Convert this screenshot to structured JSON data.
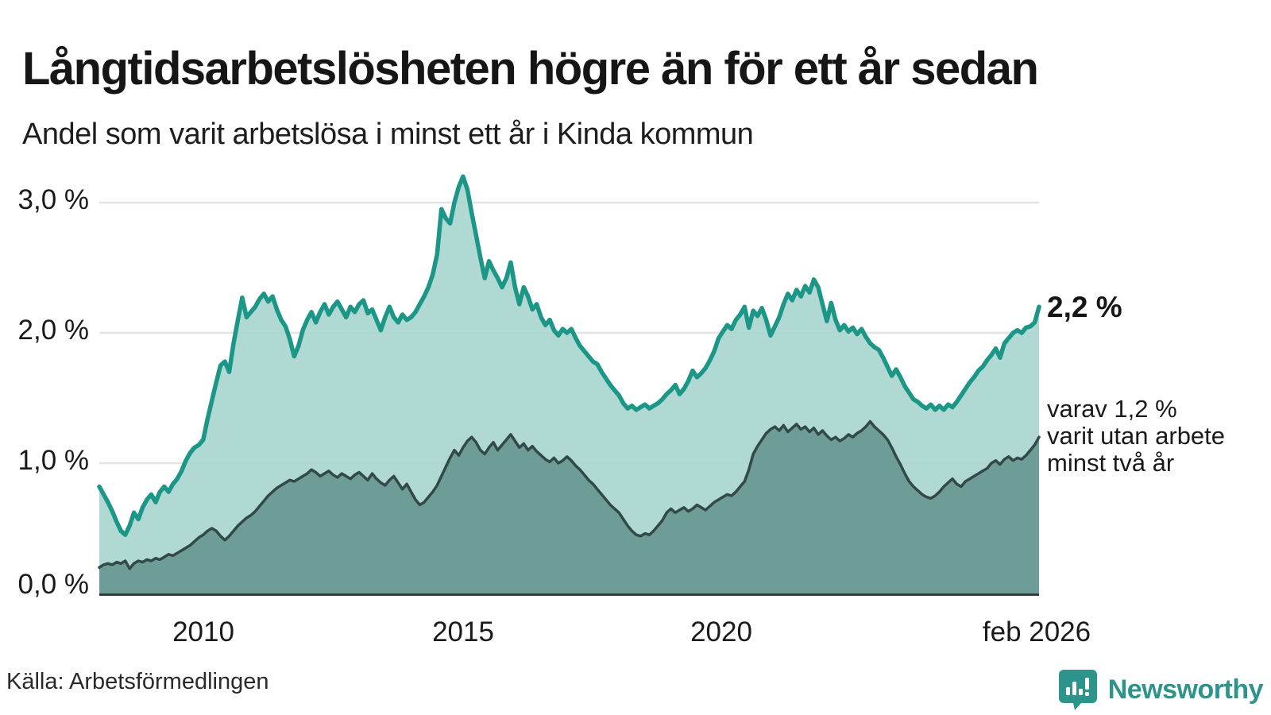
{
  "header": {
    "title": "Långtidsarbetslösheten högre än för ett år sedan",
    "subtitle": "Andel som varit arbetslösa i minst ett år i Kinda kommun"
  },
  "chart_data": {
    "type": "area",
    "title": "Långtidsarbetslösheten högre än för ett år sedan",
    "subtitle": "Andel som varit arbetslösa i minst ett år i Kinda kommun",
    "unit": "%",
    "frequency": "monthly",
    "x_start": "2008-01",
    "x_end": "2026-02",
    "ylim": [
      0,
      3.3
    ],
    "grid": "horizontal",
    "yticks": [
      {
        "value": 3.0,
        "label": "3,0 %"
      },
      {
        "value": 2.0,
        "label": "2,0 %"
      },
      {
        "value": 1.0,
        "label": "1,0 %"
      },
      {
        "value": 0.0,
        "label": "0,0 %"
      }
    ],
    "xticks": [
      "2010",
      "2015",
      "2020",
      "feb 2026"
    ],
    "annotations": {
      "series1_end_value": "2,2 %",
      "series2_note_line1": "varav 1,2 %",
      "series2_note_line2": "varit utan arbete",
      "series2_note_line3": "minst två år"
    },
    "series": [
      {
        "name": "Andel som varit arbetslösa minst ett år",
        "line_color": "#1b9687",
        "fill_color": "#a9d6d0",
        "latest_value": 2.2,
        "values": [
          0.82,
          0.76,
          0.7,
          0.63,
          0.55,
          0.48,
          0.45,
          0.52,
          0.62,
          0.57,
          0.66,
          0.72,
          0.76,
          0.7,
          0.78,
          0.82,
          0.78,
          0.84,
          0.88,
          0.94,
          1.02,
          1.08,
          1.12,
          1.14,
          1.18,
          1.34,
          1.48,
          1.62,
          1.75,
          1.78,
          1.7,
          1.92,
          2.1,
          2.27,
          2.12,
          2.16,
          2.2,
          2.26,
          2.3,
          2.24,
          2.28,
          2.18,
          2.1,
          2.05,
          1.95,
          1.82,
          1.9,
          2.02,
          2.1,
          2.16,
          2.08,
          2.16,
          2.22,
          2.14,
          2.2,
          2.24,
          2.18,
          2.12,
          2.2,
          2.16,
          2.22,
          2.25,
          2.15,
          2.18,
          2.1,
          2.02,
          2.12,
          2.2,
          2.12,
          2.08,
          2.14,
          2.1,
          2.12,
          2.16,
          2.22,
          2.28,
          2.35,
          2.45,
          2.6,
          2.95,
          2.88,
          2.84,
          3.0,
          3.12,
          3.2,
          3.1,
          2.92,
          2.75,
          2.58,
          2.42,
          2.55,
          2.48,
          2.42,
          2.35,
          2.42,
          2.54,
          2.35,
          2.22,
          2.35,
          2.28,
          2.18,
          2.22,
          2.12,
          2.06,
          2.1,
          2.02,
          1.98,
          2.03,
          2.0,
          2.03,
          1.96,
          1.9,
          1.86,
          1.82,
          1.78,
          1.76,
          1.7,
          1.65,
          1.6,
          1.56,
          1.52,
          1.46,
          1.42,
          1.44,
          1.41,
          1.43,
          1.45,
          1.42,
          1.44,
          1.46,
          1.49,
          1.53,
          1.56,
          1.6,
          1.53,
          1.57,
          1.63,
          1.71,
          1.66,
          1.69,
          1.73,
          1.79,
          1.86,
          1.96,
          2.01,
          2.06,
          2.03,
          2.1,
          2.14,
          2.2,
          2.04,
          2.17,
          2.13,
          2.19,
          2.1,
          1.98,
          2.05,
          2.12,
          2.22,
          2.3,
          2.25,
          2.33,
          2.28,
          2.36,
          2.31,
          2.41,
          2.35,
          2.22,
          2.09,
          2.23,
          2.1,
          2.02,
          2.06,
          2.01,
          2.04,
          1.99,
          2.03,
          1.97,
          1.92,
          1.89,
          1.87,
          1.81,
          1.74,
          1.67,
          1.72,
          1.66,
          1.59,
          1.54,
          1.49,
          1.47,
          1.44,
          1.42,
          1.45,
          1.41,
          1.44,
          1.41,
          1.45,
          1.43,
          1.47,
          1.52,
          1.57,
          1.62,
          1.66,
          1.71,
          1.74,
          1.79,
          1.83,
          1.88,
          1.81,
          1.92,
          1.96,
          2.0,
          2.02,
          2.0,
          2.04,
          2.05,
          2.08,
          2.2
        ]
      },
      {
        "name": "varav utan arbete minst två år",
        "line_color": "#32494a",
        "fill_color": "#6e9c97",
        "latest_value": 1.2,
        "values": [
          0.2,
          0.22,
          0.23,
          0.22,
          0.24,
          0.23,
          0.25,
          0.19,
          0.23,
          0.25,
          0.24,
          0.26,
          0.25,
          0.27,
          0.26,
          0.28,
          0.3,
          0.29,
          0.31,
          0.33,
          0.35,
          0.37,
          0.4,
          0.43,
          0.45,
          0.48,
          0.5,
          0.48,
          0.44,
          0.41,
          0.44,
          0.48,
          0.52,
          0.55,
          0.58,
          0.6,
          0.63,
          0.67,
          0.71,
          0.75,
          0.78,
          0.81,
          0.83,
          0.85,
          0.87,
          0.86,
          0.88,
          0.9,
          0.92,
          0.95,
          0.93,
          0.9,
          0.92,
          0.94,
          0.91,
          0.89,
          0.92,
          0.9,
          0.88,
          0.91,
          0.93,
          0.9,
          0.87,
          0.92,
          0.88,
          0.85,
          0.83,
          0.87,
          0.9,
          0.85,
          0.8,
          0.84,
          0.78,
          0.72,
          0.68,
          0.7,
          0.74,
          0.78,
          0.83,
          0.9,
          0.97,
          1.04,
          1.1,
          1.06,
          1.12,
          1.17,
          1.2,
          1.16,
          1.1,
          1.07,
          1.12,
          1.16,
          1.1,
          1.14,
          1.18,
          1.22,
          1.17,
          1.12,
          1.15,
          1.1,
          1.13,
          1.09,
          1.06,
          1.03,
          1.01,
          1.04,
          1.0,
          1.02,
          1.05,
          1.02,
          0.98,
          0.95,
          0.91,
          0.87,
          0.84,
          0.8,
          0.76,
          0.72,
          0.68,
          0.65,
          0.62,
          0.57,
          0.52,
          0.48,
          0.45,
          0.44,
          0.46,
          0.45,
          0.48,
          0.52,
          0.56,
          0.62,
          0.65,
          0.62,
          0.64,
          0.66,
          0.63,
          0.65,
          0.68,
          0.66,
          0.64,
          0.67,
          0.7,
          0.72,
          0.74,
          0.76,
          0.75,
          0.78,
          0.82,
          0.86,
          0.95,
          1.07,
          1.13,
          1.18,
          1.23,
          1.26,
          1.28,
          1.25,
          1.29,
          1.24,
          1.27,
          1.3,
          1.26,
          1.28,
          1.24,
          1.27,
          1.22,
          1.25,
          1.21,
          1.18,
          1.2,
          1.17,
          1.19,
          1.22,
          1.2,
          1.23,
          1.25,
          1.28,
          1.32,
          1.28,
          1.25,
          1.22,
          1.18,
          1.12,
          1.05,
          0.99,
          0.92,
          0.86,
          0.82,
          0.79,
          0.76,
          0.74,
          0.73,
          0.75,
          0.78,
          0.82,
          0.85,
          0.88,
          0.84,
          0.82,
          0.86,
          0.88,
          0.9,
          0.92,
          0.94,
          0.96,
          1.0,
          1.02,
          0.99,
          1.03,
          1.05,
          1.02,
          1.04,
          1.03,
          1.06,
          1.1,
          1.14,
          1.2
        ]
      }
    ]
  },
  "footer": {
    "source": "Källa: Arbetsförmedlingen",
    "brand": "Newsworthy"
  },
  "colors": {
    "accent_teal": "#1b9687",
    "light_fill": "#a9d6d0",
    "dark_fill": "#6e9c97",
    "dark_line": "#32494a",
    "gridline": "#e1e3e6",
    "baseline": "#2f3e3e",
    "brand_teal": "#2c948a"
  }
}
